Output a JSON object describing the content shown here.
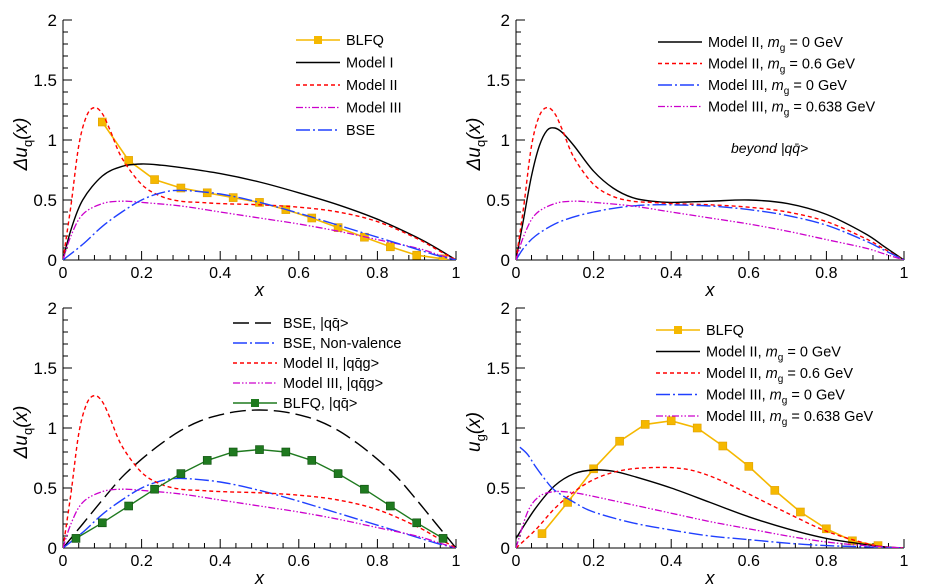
{
  "colors": {
    "blfq": "#f5b800",
    "blfq_green": "#1f7a1f",
    "model_i": "#000000",
    "model_ii": "#ff0000",
    "model_iii": "#cc00cc",
    "bse": "#2040ff",
    "axis": "#000000"
  },
  "chart_data": [
    {
      "type": "line",
      "panel": "top-left",
      "ylabel_main": "Δu",
      "ylabel_sub": "q",
      "ylabel_tail": "(x)",
      "xlabel": "x",
      "xlim": [
        0,
        1
      ],
      "ylim": [
        0,
        2
      ],
      "xticks": [
        "0",
        "0.2",
        "0.4",
        "0.6",
        "0.8",
        "1"
      ],
      "yticks": [
        "0",
        "0.5",
        "1",
        "1.5",
        "2"
      ],
      "legend_position": "top-right",
      "annotation": "",
      "series": [
        {
          "name": "BLFQ",
          "style": "blfq",
          "markers": true,
          "x": [
            0.1,
            0.167,
            0.233,
            0.3,
            0.367,
            0.433,
            0.5,
            0.567,
            0.633,
            0.7,
            0.767,
            0.833,
            0.9,
            0.967
          ],
          "y": [
            1.15,
            0.83,
            0.67,
            0.6,
            0.56,
            0.52,
            0.48,
            0.42,
            0.35,
            0.27,
            0.19,
            0.11,
            0.04,
            0.01
          ]
        },
        {
          "name": "Model I",
          "style": "model_i",
          "x": [
            0,
            0.02,
            0.05,
            0.1,
            0.15,
            0.2,
            0.25,
            0.3,
            0.4,
            0.5,
            0.6,
            0.7,
            0.8,
            0.9,
            0.95,
            1
          ],
          "y": [
            0,
            0.25,
            0.5,
            0.7,
            0.78,
            0.8,
            0.79,
            0.77,
            0.72,
            0.65,
            0.56,
            0.46,
            0.34,
            0.19,
            0.1,
            0
          ]
        },
        {
          "name": "Model II",
          "style": "model_ii",
          "x": [
            0,
            0.02,
            0.04,
            0.06,
            0.08,
            0.1,
            0.12,
            0.15,
            0.2,
            0.25,
            0.3,
            0.35,
            0.4,
            0.5,
            0.6,
            0.7,
            0.8,
            0.9,
            0.95,
            1
          ],
          "y": [
            0,
            0.45,
            0.95,
            1.2,
            1.27,
            1.22,
            1.08,
            0.85,
            0.63,
            0.53,
            0.49,
            0.48,
            0.47,
            0.46,
            0.44,
            0.4,
            0.32,
            0.18,
            0.09,
            0
          ]
        },
        {
          "name": "Model III",
          "style": "model_iii",
          "x": [
            0,
            0.02,
            0.05,
            0.1,
            0.15,
            0.2,
            0.3,
            0.4,
            0.5,
            0.6,
            0.7,
            0.8,
            0.9,
            0.95,
            1
          ],
          "y": [
            0,
            0.2,
            0.38,
            0.47,
            0.49,
            0.48,
            0.45,
            0.4,
            0.35,
            0.3,
            0.24,
            0.17,
            0.1,
            0.05,
            0
          ]
        },
        {
          "name": "BSE",
          "style": "bse",
          "x": [
            0,
            0.05,
            0.1,
            0.15,
            0.2,
            0.25,
            0.3,
            0.4,
            0.5,
            0.6,
            0.7,
            0.8,
            0.9,
            0.95,
            1
          ],
          "y": [
            0,
            0.13,
            0.28,
            0.4,
            0.5,
            0.56,
            0.58,
            0.55,
            0.48,
            0.39,
            0.29,
            0.19,
            0.09,
            0.04,
            0
          ]
        }
      ]
    },
    {
      "type": "line",
      "panel": "top-right",
      "ylabel_main": "Δu",
      "ylabel_sub": "q",
      "ylabel_tail": "(x)",
      "xlabel": "x",
      "xlim": [
        0,
        1
      ],
      "ylim": [
        0,
        2
      ],
      "xticks": [
        "0",
        "0.2",
        "0.4",
        "0.6",
        "0.8",
        "1"
      ],
      "yticks": [
        "0",
        "0.5",
        "1",
        "1.5",
        "2"
      ],
      "legend_position": "top-right",
      "annotation": "beyond |qq̄>",
      "series": [
        {
          "name": "Model II,  m_g = 0 GeV",
          "label_pre": "Model II,  ",
          "label_post": " = 0 GeV",
          "style": "model_i",
          "x": [
            0,
            0.02,
            0.04,
            0.06,
            0.08,
            0.1,
            0.12,
            0.15,
            0.2,
            0.25,
            0.3,
            0.35,
            0.4,
            0.5,
            0.6,
            0.7,
            0.8,
            0.9,
            0.95,
            1
          ],
          "y": [
            0,
            0.35,
            0.7,
            0.95,
            1.08,
            1.1,
            1.06,
            0.95,
            0.74,
            0.6,
            0.52,
            0.49,
            0.48,
            0.49,
            0.5,
            0.47,
            0.38,
            0.22,
            0.11,
            0
          ]
        },
        {
          "name": "Model II,  m_g = 0.6 GeV",
          "label_pre": "Model II,  ",
          "label_post": " = 0.6 GeV",
          "style": "model_ii",
          "x": [
            0,
            0.02,
            0.04,
            0.06,
            0.08,
            0.1,
            0.12,
            0.15,
            0.2,
            0.25,
            0.3,
            0.35,
            0.4,
            0.5,
            0.6,
            0.7,
            0.8,
            0.9,
            0.95,
            1
          ],
          "y": [
            0,
            0.45,
            0.95,
            1.2,
            1.27,
            1.22,
            1.08,
            0.85,
            0.63,
            0.53,
            0.49,
            0.48,
            0.47,
            0.46,
            0.44,
            0.4,
            0.32,
            0.18,
            0.09,
            0
          ]
        },
        {
          "name": "Model III, m_g = 0 GeV",
          "label_pre": "Model III, ",
          "label_post": " = 0 GeV",
          "style": "bse",
          "x": [
            0,
            0.02,
            0.05,
            0.1,
            0.15,
            0.2,
            0.25,
            0.3,
            0.35,
            0.4,
            0.5,
            0.6,
            0.7,
            0.8,
            0.9,
            0.95,
            1
          ],
          "y": [
            0,
            0.1,
            0.2,
            0.3,
            0.36,
            0.4,
            0.43,
            0.45,
            0.46,
            0.46,
            0.45,
            0.42,
            0.37,
            0.29,
            0.16,
            0.08,
            0
          ]
        },
        {
          "name": "Model III, m_g = 0.638 GeV",
          "label_pre": "Model III, ",
          "label_post": " = 0.638 GeV",
          "style": "model_iii",
          "x": [
            0,
            0.02,
            0.05,
            0.1,
            0.15,
            0.2,
            0.3,
            0.4,
            0.5,
            0.6,
            0.7,
            0.8,
            0.9,
            0.95,
            1
          ],
          "y": [
            0,
            0.2,
            0.38,
            0.47,
            0.49,
            0.48,
            0.45,
            0.4,
            0.35,
            0.3,
            0.24,
            0.17,
            0.1,
            0.05,
            0
          ]
        }
      ]
    },
    {
      "type": "line",
      "panel": "bottom-left",
      "ylabel_main": "Δu",
      "ylabel_sub": "q",
      "ylabel_tail": "(x)",
      "xlabel": "x",
      "xlim": [
        0,
        1
      ],
      "ylim": [
        0,
        2
      ],
      "xticks": [
        "0",
        "0.2",
        "0.4",
        "0.6",
        "0.8",
        "1"
      ],
      "yticks": [
        "0",
        "0.5",
        "1",
        "1.5",
        "2"
      ],
      "legend_position": "top-right",
      "annotation": "",
      "series": [
        {
          "name": "BSE, |qq̄>",
          "style": "bse_long_black",
          "x": [
            0,
            0.05,
            0.1,
            0.15,
            0.2,
            0.25,
            0.3,
            0.35,
            0.4,
            0.45,
            0.5,
            0.55,
            0.6,
            0.65,
            0.7,
            0.75,
            0.8,
            0.85,
            0.9,
            0.95,
            1
          ],
          "y": [
            0,
            0.2,
            0.4,
            0.59,
            0.74,
            0.87,
            0.98,
            1.06,
            1.11,
            1.14,
            1.15,
            1.14,
            1.11,
            1.06,
            0.98,
            0.87,
            0.74,
            0.59,
            0.4,
            0.2,
            0
          ]
        },
        {
          "name": "BSE, Non-valence",
          "style": "bse",
          "x": [
            0,
            0.05,
            0.1,
            0.15,
            0.2,
            0.25,
            0.3,
            0.4,
            0.5,
            0.6,
            0.7,
            0.8,
            0.9,
            0.95,
            1
          ],
          "y": [
            0,
            0.13,
            0.28,
            0.4,
            0.5,
            0.56,
            0.58,
            0.55,
            0.48,
            0.39,
            0.29,
            0.19,
            0.09,
            0.04,
            0
          ]
        },
        {
          "name": "Model II,  |qq̄g>",
          "style": "model_ii",
          "x": [
            0,
            0.02,
            0.04,
            0.06,
            0.08,
            0.1,
            0.12,
            0.15,
            0.2,
            0.25,
            0.3,
            0.35,
            0.4,
            0.5,
            0.6,
            0.7,
            0.8,
            0.9,
            0.95,
            1
          ],
          "y": [
            0,
            0.45,
            0.95,
            1.2,
            1.27,
            1.22,
            1.08,
            0.85,
            0.63,
            0.53,
            0.49,
            0.48,
            0.47,
            0.46,
            0.44,
            0.4,
            0.32,
            0.18,
            0.09,
            0
          ]
        },
        {
          "name": "Model III, |qq̄g>",
          "style": "model_iii",
          "x": [
            0,
            0.02,
            0.05,
            0.1,
            0.15,
            0.2,
            0.3,
            0.4,
            0.5,
            0.6,
            0.7,
            0.8,
            0.9,
            0.95,
            1
          ],
          "y": [
            0,
            0.2,
            0.38,
            0.47,
            0.49,
            0.48,
            0.45,
            0.4,
            0.35,
            0.3,
            0.24,
            0.17,
            0.1,
            0.05,
            0
          ]
        },
        {
          "name": "BLFQ, |qq̄>",
          "style": "blfq_green",
          "markers": true,
          "x": [
            0.033,
            0.1,
            0.167,
            0.233,
            0.3,
            0.367,
            0.433,
            0.5,
            0.567,
            0.633,
            0.7,
            0.767,
            0.833,
            0.9,
            0.967
          ],
          "y": [
            0.08,
            0.21,
            0.35,
            0.49,
            0.62,
            0.73,
            0.8,
            0.82,
            0.8,
            0.73,
            0.62,
            0.49,
            0.35,
            0.21,
            0.08
          ]
        }
      ]
    },
    {
      "type": "line",
      "panel": "bottom-right",
      "ylabel_main": "u",
      "ylabel_sub": "g",
      "ylabel_tail": "(x)",
      "xlabel": "x",
      "xlim": [
        0,
        1
      ],
      "ylim": [
        0,
        2
      ],
      "xticks": [
        "0",
        "0.2",
        "0.4",
        "0.6",
        "0.8",
        "1"
      ],
      "yticks": [
        "0",
        "0.5",
        "1",
        "1.5",
        "2"
      ],
      "legend_position": "top-right",
      "annotation": "",
      "series": [
        {
          "name": "BLFQ",
          "style": "blfq",
          "markers": true,
          "x": [
            0.067,
            0.133,
            0.2,
            0.267,
            0.333,
            0.4,
            0.467,
            0.533,
            0.6,
            0.667,
            0.733,
            0.8,
            0.867,
            0.933
          ],
          "y": [
            0.12,
            0.38,
            0.66,
            0.89,
            1.03,
            1.06,
            1.0,
            0.85,
            0.68,
            0.48,
            0.3,
            0.16,
            0.06,
            0.02
          ]
        },
        {
          "name": "Model II,  m_g = 0 GeV",
          "label_pre": "Model II,  ",
          "label_post": " = 0 GeV",
          "style": "model_i",
          "x": [
            0,
            0.05,
            0.1,
            0.15,
            0.2,
            0.25,
            0.3,
            0.4,
            0.5,
            0.6,
            0.7,
            0.8,
            0.9,
            0.95,
            1
          ],
          "y": [
            0.08,
            0.33,
            0.52,
            0.62,
            0.65,
            0.64,
            0.6,
            0.5,
            0.38,
            0.26,
            0.16,
            0.08,
            0.03,
            0.01,
            0
          ]
        },
        {
          "name": "Model II,  m_g = 0.6 GeV",
          "label_pre": "Model II,  ",
          "label_post": " = 0.6 GeV",
          "style": "model_ii",
          "x": [
            0,
            0.05,
            0.1,
            0.15,
            0.2,
            0.25,
            0.3,
            0.35,
            0.4,
            0.45,
            0.5,
            0.55,
            0.6,
            0.7,
            0.8,
            0.9,
            0.95,
            1
          ],
          "y": [
            0,
            0.15,
            0.33,
            0.47,
            0.57,
            0.63,
            0.66,
            0.67,
            0.67,
            0.65,
            0.6,
            0.53,
            0.45,
            0.29,
            0.14,
            0.04,
            0.01,
            0
          ]
        },
        {
          "name": "Model III, m_g = 0 GeV",
          "label_pre": "Model III, ",
          "label_post": " = 0 GeV",
          "style": "bse",
          "x": [
            0.01,
            0.03,
            0.05,
            0.08,
            0.1,
            0.15,
            0.2,
            0.3,
            0.4,
            0.5,
            0.6,
            0.7,
            0.8,
            0.9,
            1
          ],
          "y": [
            0.84,
            0.78,
            0.68,
            0.55,
            0.48,
            0.38,
            0.3,
            0.21,
            0.15,
            0.1,
            0.07,
            0.04,
            0.02,
            0.01,
            0
          ]
        },
        {
          "name": "Model III, m_g = 0.638 GeV",
          "label_pre": "Model III, ",
          "label_post": " = 0.638 GeV",
          "style": "model_iii",
          "x": [
            0,
            0.03,
            0.06,
            0.1,
            0.15,
            0.2,
            0.3,
            0.4,
            0.5,
            0.6,
            0.7,
            0.8,
            0.9,
            1
          ],
          "y": [
            0,
            0.3,
            0.43,
            0.47,
            0.46,
            0.43,
            0.36,
            0.29,
            0.22,
            0.16,
            0.1,
            0.05,
            0.02,
            0
          ]
        }
      ]
    }
  ]
}
